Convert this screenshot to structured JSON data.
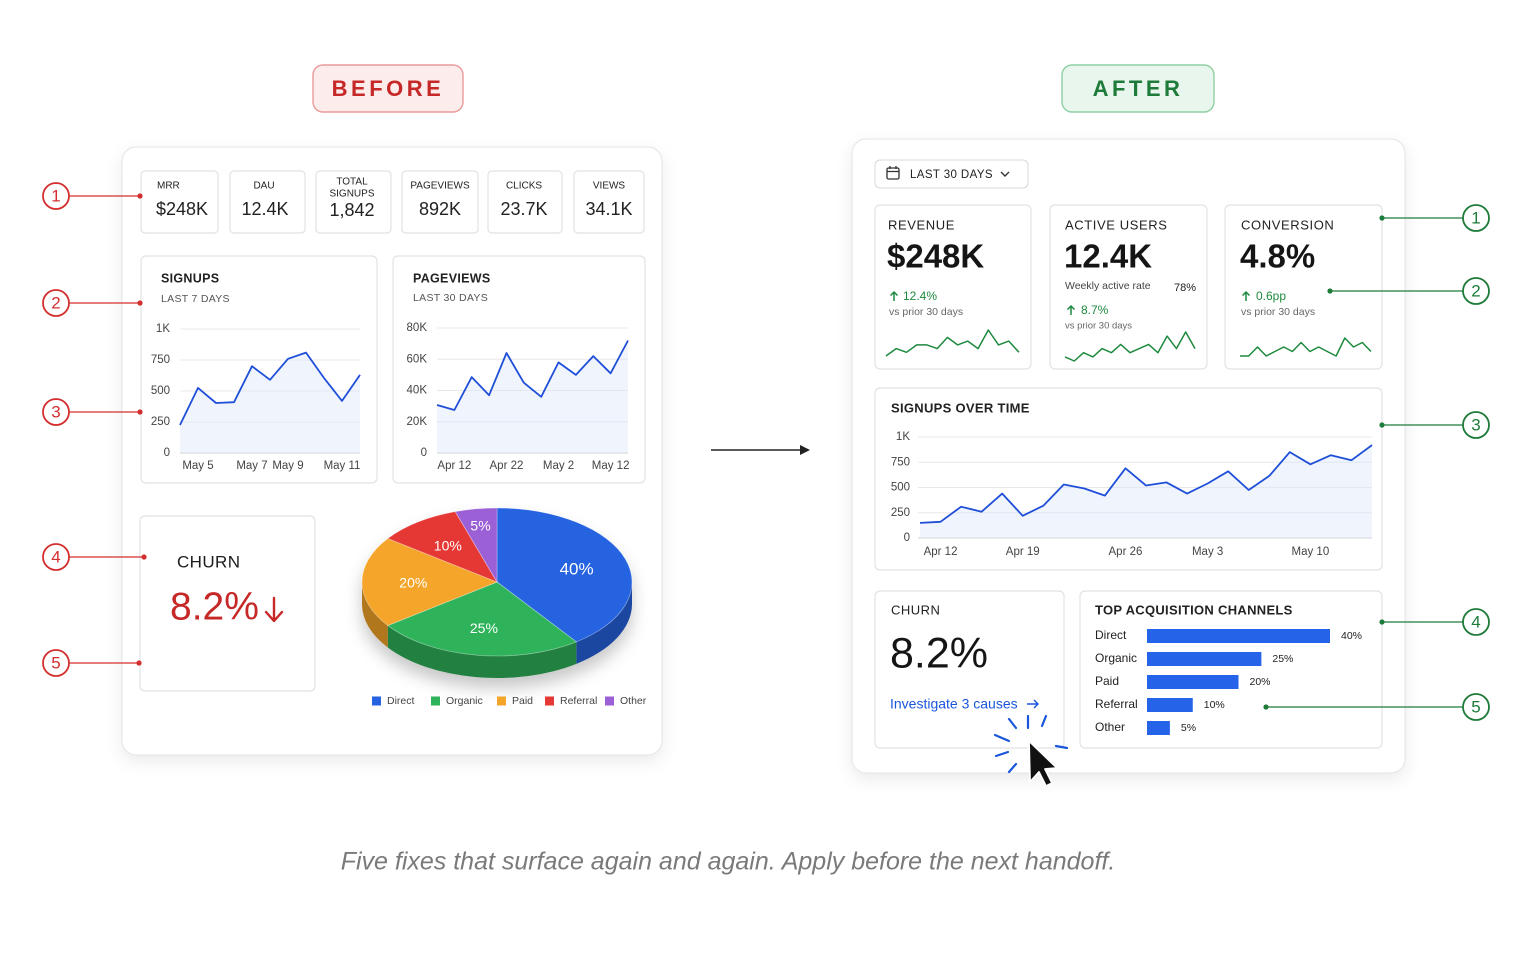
{
  "before_label": "BEFORE",
  "after_label": "AFTER",
  "caption": "Five fixes that surface again and again. Apply before the next handoff.",
  "before_markers": [
    1,
    2,
    3,
    4,
    5
  ],
  "after_markers": [
    1,
    2,
    3,
    4,
    5
  ],
  "before": {
    "kpis": [
      {
        "label": "MRR",
        "value": "$248K"
      },
      {
        "label": "DAU",
        "value": "12.4K"
      },
      {
        "label": [
          "TOTAL",
          "SIGNUPS"
        ],
        "value": "1,842"
      },
      {
        "label": "PAGEVIEWS",
        "value": "892K"
      },
      {
        "label": "CLICKS",
        "value": "23.7K"
      },
      {
        "label": "VIEWS",
        "value": "34.1K"
      }
    ],
    "churn": {
      "title": "CHURN",
      "value": "8.2%"
    }
  },
  "after": {
    "date_range": "LAST 30 DAYS",
    "kpis": [
      {
        "label": "REVENUE",
        "value": "$248K",
        "change": "12.4%",
        "note": "vs prior 30 days"
      },
      {
        "label": "ACTIVE USERS",
        "value": "12.4K",
        "detail": "Weekly active rate",
        "detail_value": "78%",
        "change": "8.7%",
        "note": "vs prior 30 days"
      },
      {
        "label": "CONVERSION",
        "value": "4.8%",
        "change": "0.6pp",
        "note": "vs prior 30 days"
      }
    ],
    "churn": {
      "title": "CHURN",
      "value": "8.2%",
      "link": "Investigate 3 causes"
    }
  },
  "chart_data": [
    {
      "type": "line",
      "title": "SIGNUPS",
      "subtitle": "LAST 7 DAYS",
      "color": "#1f4fd8",
      "categories": [
        null,
        "May 5",
        null,
        null,
        "May 7",
        null,
        "May 9",
        null,
        null,
        "May 11",
        null
      ],
      "values": [
        226,
        525,
        403,
        410,
        700,
        590,
        760,
        810,
        605,
        420,
        630
      ],
      "ylim": [
        0,
        1000
      ],
      "yticks": [
        0,
        250,
        500,
        750,
        {
          "value": 1000,
          "label": "1K"
        }
      ],
      "grid": true
    },
    {
      "type": "line",
      "title": "PAGEVIEWS",
      "subtitle": "LAST 30 DAYS",
      "color": "#1f4fd8",
      "categories": [
        null,
        "Apr 12",
        null,
        null,
        "Apr 22",
        null,
        null,
        "May 2",
        null,
        null,
        "May 12",
        null
      ],
      "values": [
        30700,
        27500,
        48600,
        37000,
        64000,
        45000,
        36000,
        58000,
        50000,
        62000,
        51000,
        72000
      ],
      "ylim": [
        0,
        80000
      ],
      "yticks": [
        0,
        {
          "value": 20000,
          "label": "20K"
        },
        {
          "value": 40000,
          "label": "40K"
        },
        {
          "value": 60000,
          "label": "60K"
        },
        {
          "value": 80000,
          "label": "80K"
        }
      ],
      "grid": true
    },
    {
      "type": "pie",
      "categories": [
        "Direct",
        "Organic",
        "Paid",
        "Referral",
        "Other"
      ],
      "values": [
        40,
        25,
        20,
        10,
        5
      ],
      "value_labels": [
        "40%",
        "25%",
        "20%",
        "10%",
        "5%"
      ],
      "colors": [
        "#2563e0",
        "#2fb35a",
        "#f5a52a",
        "#e53935",
        "#9b5fd6"
      ],
      "legend": "bottom"
    },
    {
      "type": "sparkline",
      "color": "#1e8a3e",
      "values": [
        3,
        5,
        4,
        6,
        6,
        5,
        8,
        6,
        7,
        5,
        10,
        6,
        7,
        4
      ]
    },
    {
      "type": "sparkline",
      "color": "#1e8a3e",
      "values": [
        3,
        2,
        4,
        3,
        5,
        4,
        6,
        4,
        5,
        6,
        4,
        8,
        5,
        9,
        5
      ]
    },
    {
      "type": "sparkline",
      "color": "#1e8a3e",
      "values": [
        3,
        3,
        5,
        3,
        4,
        5,
        4,
        6,
        4,
        5,
        4,
        3,
        7,
        5,
        6,
        4
      ]
    },
    {
      "type": "line",
      "title": "SIGNUPS OVER TIME",
      "color": "#1f4fd8",
      "categories": [
        null,
        "Apr 12",
        null,
        null,
        null,
        "Apr 19",
        null,
        null,
        null,
        null,
        "Apr 26",
        null,
        null,
        null,
        "May 3",
        null,
        null,
        null,
        null,
        "May 10",
        null,
        null,
        null
      ],
      "values": [
        150,
        160,
        310,
        260,
        440,
        220,
        320,
        530,
        490,
        420,
        690,
        520,
        550,
        440,
        540,
        660,
        475,
        615,
        850,
        730,
        820,
        770,
        920
      ],
      "ylim": [
        0,
        1000
      ],
      "yticks": [
        0,
        250,
        500,
        750,
        {
          "value": 1000,
          "label": "1K"
        }
      ],
      "grid": true
    },
    {
      "type": "bar",
      "orientation": "horizontal",
      "title": "TOP ACQUISITION CHANNELS",
      "color": "#2563e8",
      "categories": [
        "Direct",
        "Organic",
        "Paid",
        "Referral",
        "Other"
      ],
      "values": [
        40,
        25,
        20,
        10,
        5
      ],
      "value_labels": [
        "40%",
        "25%",
        "20%",
        "10%",
        "5%"
      ]
    }
  ]
}
